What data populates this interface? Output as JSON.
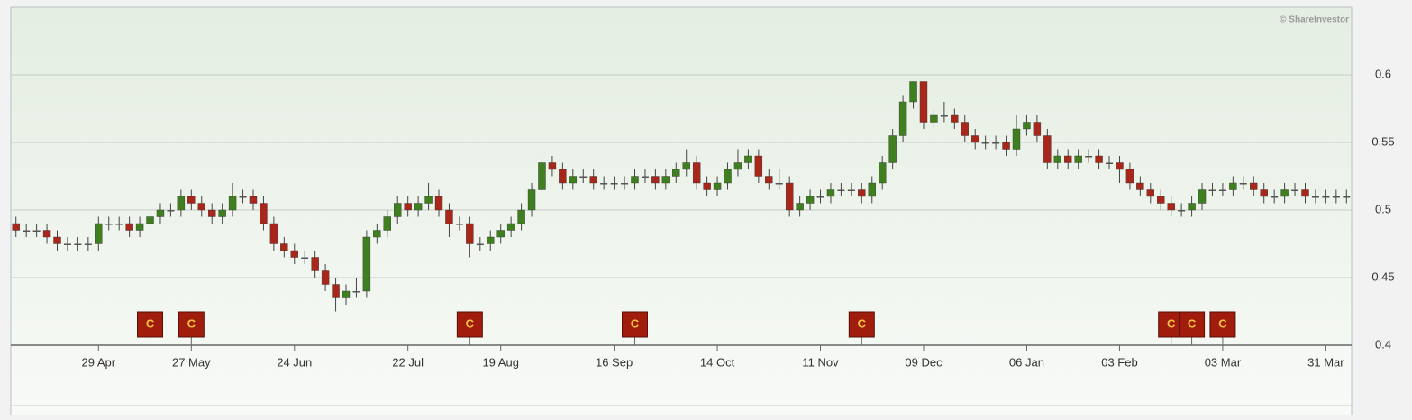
{
  "chart_data": {
    "type": "candlestick",
    "credit": "© ShareInvestor",
    "categories": [
      null,
      null,
      null,
      null,
      null,
      null,
      null,
      null,
      "29 Apr",
      null,
      null,
      null,
      null,
      null,
      null,
      null,
      null,
      "27 May",
      null,
      null,
      null,
      null,
      null,
      null,
      null,
      null,
      null,
      "24 Jun",
      null,
      null,
      null,
      null,
      null,
      null,
      null,
      null,
      null,
      null,
      "22 Jul",
      null,
      null,
      null,
      null,
      null,
      null,
      null,
      null,
      "19 Aug",
      null,
      null,
      null,
      null,
      null,
      null,
      null,
      null,
      null,
      null,
      "16 Sep",
      null,
      null,
      null,
      null,
      null,
      null,
      null,
      null,
      null,
      "14 Oct",
      null,
      null,
      null,
      null,
      null,
      null,
      null,
      null,
      null,
      "11 Nov",
      null,
      null,
      null,
      null,
      null,
      null,
      null,
      null,
      null,
      "09 Dec",
      null,
      null,
      null,
      null,
      null,
      null,
      null,
      null,
      null,
      "06 Jan",
      null,
      null,
      null,
      null,
      null,
      null,
      null,
      null,
      "03 Feb",
      null,
      null,
      null,
      null,
      null,
      null,
      null,
      null,
      null,
      "03 Mar",
      null,
      null,
      null,
      null,
      null,
      null,
      null,
      null,
      null,
      "31 Mar",
      null,
      null
    ],
    "events": [
      null,
      null,
      null,
      null,
      null,
      null,
      null,
      null,
      null,
      null,
      null,
      null,
      null,
      "C",
      null,
      null,
      null,
      "C",
      null,
      null,
      null,
      null,
      null,
      null,
      null,
      null,
      null,
      null,
      null,
      null,
      null,
      null,
      null,
      null,
      null,
      null,
      null,
      null,
      null,
      null,
      null,
      null,
      null,
      null,
      "C",
      null,
      null,
      null,
      null,
      null,
      null,
      null,
      null,
      null,
      null,
      null,
      null,
      null,
      null,
      null,
      "C",
      null,
      null,
      null,
      null,
      null,
      null,
      null,
      null,
      null,
      null,
      null,
      null,
      null,
      null,
      null,
      null,
      null,
      null,
      null,
      null,
      null,
      "C",
      null,
      null,
      null,
      null,
      null,
      null,
      null,
      null,
      null,
      null,
      null,
      null,
      null,
      null,
      null,
      null,
      null,
      null,
      null,
      null,
      null,
      null,
      null,
      null,
      null,
      null,
      null,
      null,
      null,
      "C",
      null,
      "C",
      null,
      null,
      "C",
      null,
      null,
      null,
      null,
      null,
      null,
      null,
      null,
      null,
      null,
      null,
      null,
      null,
      null,
      null,
      null,
      null,
      null
    ],
    "open": [
      0.49,
      0.485,
      0.485,
      0.485,
      0.48,
      0.475,
      0.475,
      0.475,
      0.475,
      0.49,
      0.49,
      0.49,
      0.485,
      0.49,
      0.495,
      0.5,
      0.5,
      0.51,
      0.505,
      0.5,
      0.495,
      0.5,
      0.51,
      0.51,
      0.505,
      0.49,
      0.475,
      0.47,
      0.465,
      0.465,
      0.455,
      0.445,
      0.435,
      0.44,
      0.44,
      0.48,
      0.485,
      0.495,
      0.505,
      0.5,
      0.505,
      0.51,
      0.5,
      0.49,
      0.49,
      0.475,
      0.475,
      0.48,
      0.485,
      0.49,
      0.5,
      0.515,
      0.535,
      0.53,
      0.52,
      0.525,
      0.525,
      0.52,
      0.52,
      0.52,
      0.52,
      0.525,
      0.525,
      0.52,
      0.525,
      0.53,
      0.535,
      0.52,
      0.515,
      0.52,
      0.53,
      0.535,
      0.54,
      0.525,
      0.52,
      0.52,
      0.5,
      0.505,
      0.51,
      0.51,
      0.515,
      0.515,
      0.515,
      0.51,
      0.52,
      0.535,
      0.555,
      0.58,
      0.595,
      0.565,
      0.57,
      0.57,
      0.565,
      0.555,
      0.55,
      0.55,
      0.55,
      0.545,
      0.56,
      0.565,
      0.555,
      0.535,
      0.54,
      0.535,
      0.54,
      0.54,
      0.535,
      0.535,
      0.53,
      0.52,
      0.515,
      0.51,
      0.505,
      0.5,
      0.5,
      0.505,
      0.515,
      0.515,
      0.515,
      0.52,
      0.52,
      0.515,
      0.51,
      0.51,
      0.515,
      0.515,
      0.51,
      0.51,
      0.51,
      0.51
    ],
    "high": [
      0.495,
      0.49,
      0.49,
      0.49,
      0.485,
      0.48,
      0.48,
      0.48,
      0.495,
      0.495,
      0.495,
      0.495,
      0.495,
      0.5,
      0.505,
      0.505,
      0.515,
      0.515,
      0.51,
      0.505,
      0.505,
      0.52,
      0.515,
      0.515,
      0.51,
      0.495,
      0.48,
      0.475,
      0.47,
      0.47,
      0.46,
      0.45,
      0.445,
      0.45,
      0.485,
      0.49,
      0.5,
      0.51,
      0.51,
      0.51,
      0.52,
      0.515,
      0.505,
      0.495,
      0.495,
      0.48,
      0.485,
      0.49,
      0.495,
      0.505,
      0.52,
      0.54,
      0.54,
      0.535,
      0.53,
      0.53,
      0.53,
      0.525,
      0.525,
      0.525,
      0.53,
      0.53,
      0.53,
      0.53,
      0.535,
      0.545,
      0.54,
      0.525,
      0.525,
      0.535,
      0.545,
      0.545,
      0.545,
      0.53,
      0.53,
      0.525,
      0.51,
      0.515,
      0.515,
      0.52,
      0.52,
      0.52,
      0.52,
      0.525,
      0.54,
      0.56,
      0.585,
      0.595,
      0.595,
      0.575,
      0.58,
      0.575,
      0.57,
      0.56,
      0.555,
      0.555,
      0.555,
      0.57,
      0.57,
      0.57,
      0.56,
      0.545,
      0.545,
      0.545,
      0.545,
      0.545,
      0.54,
      0.54,
      0.535,
      0.525,
      0.52,
      0.515,
      0.51,
      0.505,
      0.51,
      0.52,
      0.52,
      0.52,
      0.525,
      0.525,
      0.525,
      0.52,
      0.515,
      0.52,
      0.52,
      0.52,
      0.515,
      0.515,
      0.515,
      0.515
    ],
    "low": [
      0.48,
      0.48,
      0.48,
      0.475,
      0.47,
      0.47,
      0.47,
      0.47,
      0.47,
      0.485,
      0.485,
      0.48,
      0.48,
      0.485,
      0.49,
      0.495,
      0.495,
      0.5,
      0.495,
      0.49,
      0.49,
      0.495,
      0.505,
      0.5,
      0.485,
      0.47,
      0.465,
      0.46,
      0.46,
      0.45,
      0.44,
      0.425,
      0.43,
      0.435,
      0.435,
      0.475,
      0.48,
      0.49,
      0.495,
      0.495,
      0.5,
      0.495,
      0.48,
      0.485,
      0.465,
      0.47,
      0.47,
      0.475,
      0.48,
      0.485,
      0.495,
      0.51,
      0.525,
      0.515,
      0.515,
      0.52,
      0.515,
      0.515,
      0.515,
      0.515,
      0.515,
      0.52,
      0.515,
      0.515,
      0.52,
      0.525,
      0.515,
      0.51,
      0.51,
      0.515,
      0.525,
      0.53,
      0.52,
      0.515,
      0.515,
      0.495,
      0.495,
      0.5,
      0.505,
      0.505,
      0.51,
      0.51,
      0.505,
      0.505,
      0.515,
      0.53,
      0.55,
      0.575,
      0.56,
      0.56,
      0.565,
      0.56,
      0.55,
      0.545,
      0.545,
      0.545,
      0.54,
      0.54,
      0.555,
      0.55,
      0.53,
      0.53,
      0.53,
      0.53,
      0.535,
      0.53,
      0.53,
      0.52,
      0.515,
      0.51,
      0.505,
      0.5,
      0.495,
      0.495,
      0.495,
      0.5,
      0.51,
      0.51,
      0.51,
      0.515,
      0.51,
      0.505,
      0.505,
      0.505,
      0.51,
      0.505,
      0.505,
      0.505,
      0.505,
      0.505
    ],
    "close": [
      0.485,
      0.485,
      0.485,
      0.48,
      0.475,
      0.475,
      0.475,
      0.475,
      0.49,
      0.49,
      0.49,
      0.485,
      0.49,
      0.495,
      0.5,
      0.5,
      0.51,
      0.505,
      0.5,
      0.495,
      0.5,
      0.51,
      0.51,
      0.505,
      0.49,
      0.475,
      0.47,
      0.465,
      0.465,
      0.455,
      0.445,
      0.435,
      0.44,
      0.44,
      0.48,
      0.485,
      0.495,
      0.505,
      0.5,
      0.505,
      0.51,
      0.5,
      0.49,
      0.49,
      0.475,
      0.475,
      0.48,
      0.485,
      0.49,
      0.5,
      0.515,
      0.535,
      0.53,
      0.52,
      0.525,
      0.525,
      0.52,
      0.52,
      0.52,
      0.52,
      0.525,
      0.525,
      0.52,
      0.525,
      0.53,
      0.535,
      0.52,
      0.515,
      0.52,
      0.53,
      0.535,
      0.54,
      0.525,
      0.52,
      0.52,
      0.5,
      0.505,
      0.51,
      0.51,
      0.515,
      0.515,
      0.515,
      0.51,
      0.52,
      0.535,
      0.555,
      0.58,
      0.595,
      0.565,
      0.57,
      0.57,
      0.565,
      0.555,
      0.55,
      0.55,
      0.55,
      0.545,
      0.56,
      0.565,
      0.555,
      0.535,
      0.54,
      0.535,
      0.54,
      0.54,
      0.535,
      0.535,
      0.53,
      0.52,
      0.515,
      0.51,
      0.505,
      0.5,
      0.5,
      0.505,
      0.515,
      0.515,
      0.515,
      0.52,
      0.52,
      0.515,
      0.51,
      0.51,
      0.515,
      0.515,
      0.51,
      0.51,
      0.51,
      0.51,
      0.51
    ],
    "up_color": "#3f7f1f",
    "down_color": "#a8261a",
    "flat_color": "#555555",
    "ylim": [
      0.4,
      0.65
    ],
    "yticks": [
      0.4,
      0.45,
      0.5,
      0.55,
      0.6
    ],
    "grid": true
  }
}
